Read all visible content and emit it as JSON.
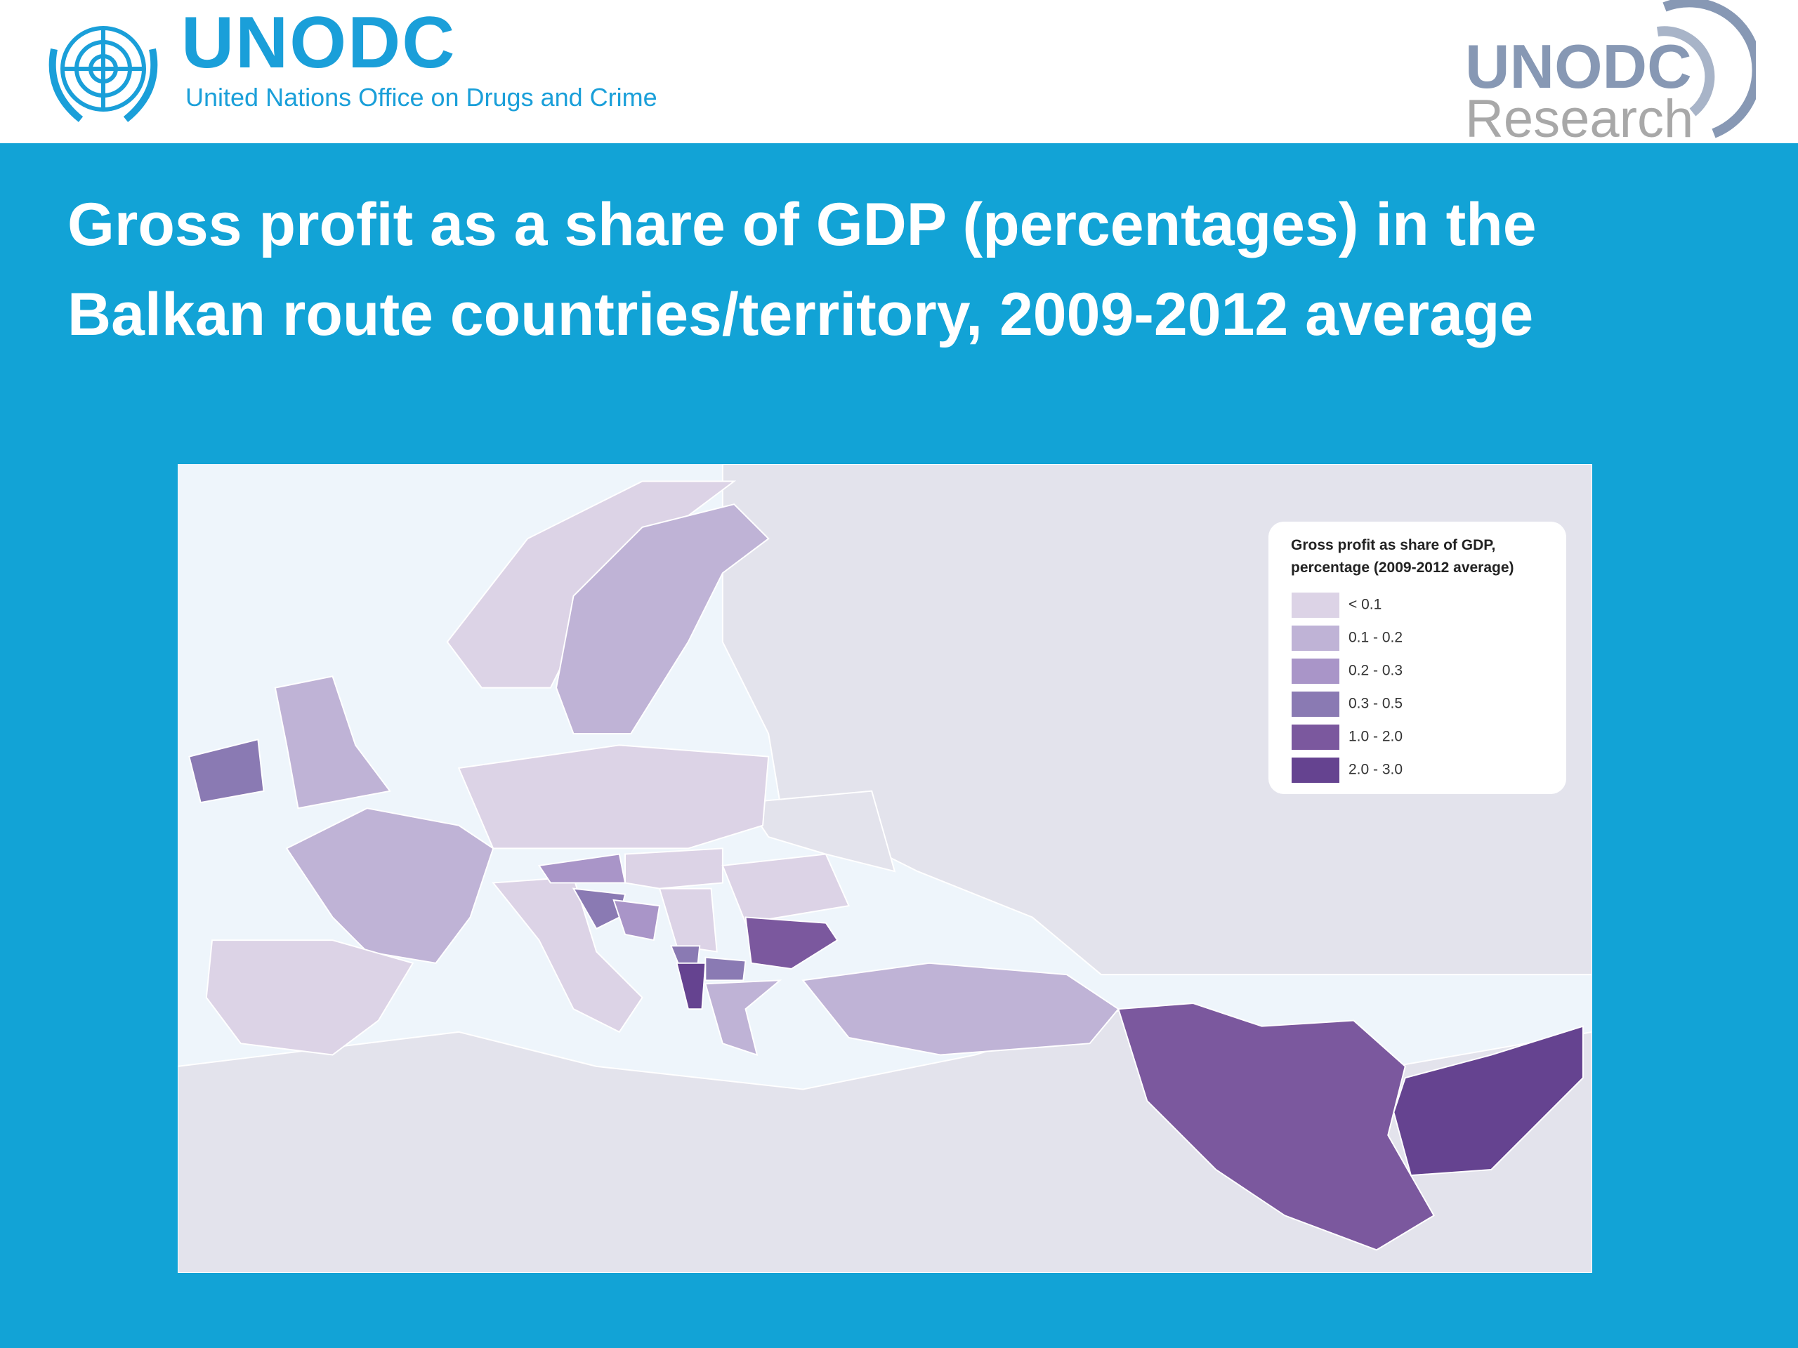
{
  "header": {
    "logo": "UNODC",
    "organization": "United Nations Office on Drugs and Crime",
    "research_logo": "UNODC",
    "research_label": "Research"
  },
  "title": "Gross profit as a share of GDP (percentages) in the Balkan route countries/territory, 2009-2012 average",
  "legend": {
    "title": [
      "Gross profit as share of GDP,",
      "percentage (2009-2012 average)"
    ],
    "items": [
      {
        "label": "< 0.1",
        "color": "#dcd3e6"
      },
      {
        "label": "0.1 - 0.2",
        "color": "#bfb3d6"
      },
      {
        "label": "0.2 - 0.3",
        "color": "#a995c8"
      },
      {
        "label": "0.3 - 0.5",
        "color": "#8a7ab3"
      },
      {
        "label": "1.0 - 2.0",
        "color": "#7b589e"
      },
      {
        "label": "2.0 - 3.0",
        "color": "#654390"
      }
    ]
  }
}
